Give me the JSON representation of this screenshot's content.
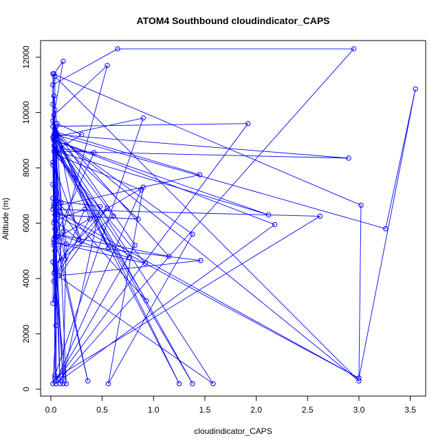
{
  "chart_data": {
    "type": "line",
    "title": "ATOM4 Southbound cloudindicator_CAPS",
    "xlabel": "cloudindicator_CAPS",
    "ylabel": "Altitude (m)",
    "xlim": [
      -0.1,
      3.65
    ],
    "ylim": [
      -250,
      12600
    ],
    "x_ticks": [
      0.0,
      0.5,
      1.0,
      1.5,
      2.0,
      2.5,
      3.0,
      3.5
    ],
    "x_tick_labels": [
      "0.0",
      "0.5",
      "1.0",
      "1.5",
      "2.0",
      "2.5",
      "3.0",
      "3.5"
    ],
    "y_ticks": [
      0,
      2000,
      4000,
      6000,
      8000,
      10000,
      12000
    ],
    "y_tick_labels": [
      "0",
      "2000",
      "4000",
      "6000",
      "8000",
      "10000",
      "12000"
    ],
    "grid": false,
    "series_color": "#0000ff",
    "series": [
      {
        "points": [
          [
            0.02,
            200
          ],
          [
            0.05,
            2300
          ],
          [
            0.03,
            5200
          ],
          [
            0.02,
            8100
          ],
          [
            0.02,
            10300
          ],
          [
            0.03,
            11400
          ],
          [
            0.12,
            11850
          ],
          [
            0.04,
            10100
          ],
          [
            0.06,
            9600
          ],
          [
            0.3,
            9200
          ],
          [
            0.08,
            8700
          ],
          [
            0.42,
            8550
          ],
          [
            0.04,
            5500
          ],
          [
            0.36,
            300
          ],
          [
            0.06,
            5500
          ],
          [
            0.02,
            8200
          ],
          [
            0.02,
            11000
          ],
          [
            0.65,
            12300
          ],
          [
            2.95,
            12300
          ],
          [
            0.05,
            200
          ],
          [
            0.04,
            5800
          ],
          [
            0.03,
            9900
          ],
          [
            0.55,
            11700
          ],
          [
            0.12,
            5700
          ],
          [
            0.02,
            3100
          ],
          [
            0.03,
            6700
          ],
          [
            0.02,
            9100
          ],
          [
            0.9,
            9800
          ],
          [
            0.04,
            500
          ],
          [
            0.03,
            6000
          ],
          [
            0.05,
            9300
          ],
          [
            1.45,
            7750
          ],
          [
            0.03,
            6600
          ],
          [
            0.02,
            9500
          ],
          [
            1.92,
            9600
          ],
          [
            0.05,
            300
          ],
          [
            0.05,
            8600
          ],
          [
            2.12,
            6300
          ],
          [
            0.03,
            9000
          ],
          [
            2.18,
            5950
          ],
          [
            0.05,
            200
          ],
          [
            0.06,
            9200
          ],
          [
            2.9,
            8350
          ],
          [
            0.03,
            8600
          ],
          [
            0.02,
            11400
          ],
          [
            3.02,
            6650
          ],
          [
            3.0,
            400
          ],
          [
            0.02,
            6500
          ],
          [
            2.62,
            6250
          ],
          [
            0.04,
            400
          ],
          [
            0.03,
            9200
          ],
          [
            1.38,
            5600
          ],
          [
            0.56,
            200
          ],
          [
            0.9,
            7300
          ],
          [
            0.03,
            5400
          ],
          [
            0.04,
            11300
          ],
          [
            3.0,
            300
          ],
          [
            0.04,
            9200
          ],
          [
            3.26,
            5800
          ],
          [
            3.55,
            10850
          ],
          [
            3.0,
            400
          ],
          [
            0.04,
            6300
          ],
          [
            0.85,
            6150
          ],
          [
            0.03,
            9100
          ],
          [
            1.58,
            200
          ],
          [
            0.03,
            4200
          ],
          [
            0.03,
            9000
          ],
          [
            1.25,
            200
          ],
          [
            0.04,
            9300
          ],
          [
            0.56,
            5100
          ],
          [
            0.04,
            8700
          ],
          [
            1.38,
            200
          ],
          [
            0.05,
            9000
          ],
          [
            0.61,
            6250
          ],
          [
            0.04,
            4500
          ],
          [
            0.55,
            6550
          ],
          [
            0.08,
            4100
          ],
          [
            1.46,
            4650
          ],
          [
            0.03,
            5300
          ],
          [
            0.92,
            4550
          ],
          [
            0.04,
            8500
          ],
          [
            0.88,
            7200
          ],
          [
            0.05,
            300
          ],
          [
            0.82,
            5200
          ],
          [
            0.04,
            9400
          ],
          [
            1.15,
            4800
          ],
          [
            0.06,
            5600
          ],
          [
            0.76,
            4750
          ],
          [
            0.03,
            8800
          ],
          [
            0.93,
            3200
          ],
          [
            0.06,
            6800
          ],
          [
            0.48,
            6600
          ],
          [
            0.12,
            400
          ],
          [
            0.15,
            5250
          ],
          [
            0.04,
            8000
          ],
          [
            0.3,
            5350
          ],
          [
            0.02,
            6900
          ],
          [
            0.14,
            4700
          ],
          [
            0.05,
            9500
          ],
          [
            0.27,
            5400
          ],
          [
            0.04,
            6100
          ],
          [
            0.33,
            6500
          ],
          [
            0.03,
            3900
          ],
          [
            0.38,
            6150
          ],
          [
            0.02,
            9700
          ],
          [
            0.09,
            200
          ],
          [
            0.04,
            5000
          ],
          [
            0.12,
            200
          ],
          [
            0.02,
            7400
          ],
          [
            0.07,
            6300
          ],
          [
            0.03,
            10600
          ],
          [
            0.15,
            200
          ],
          [
            0.02,
            4600
          ],
          [
            0.1,
            6750
          ],
          [
            0.03,
            9000
          ],
          [
            0.06,
            5400
          ]
        ]
      }
    ]
  }
}
